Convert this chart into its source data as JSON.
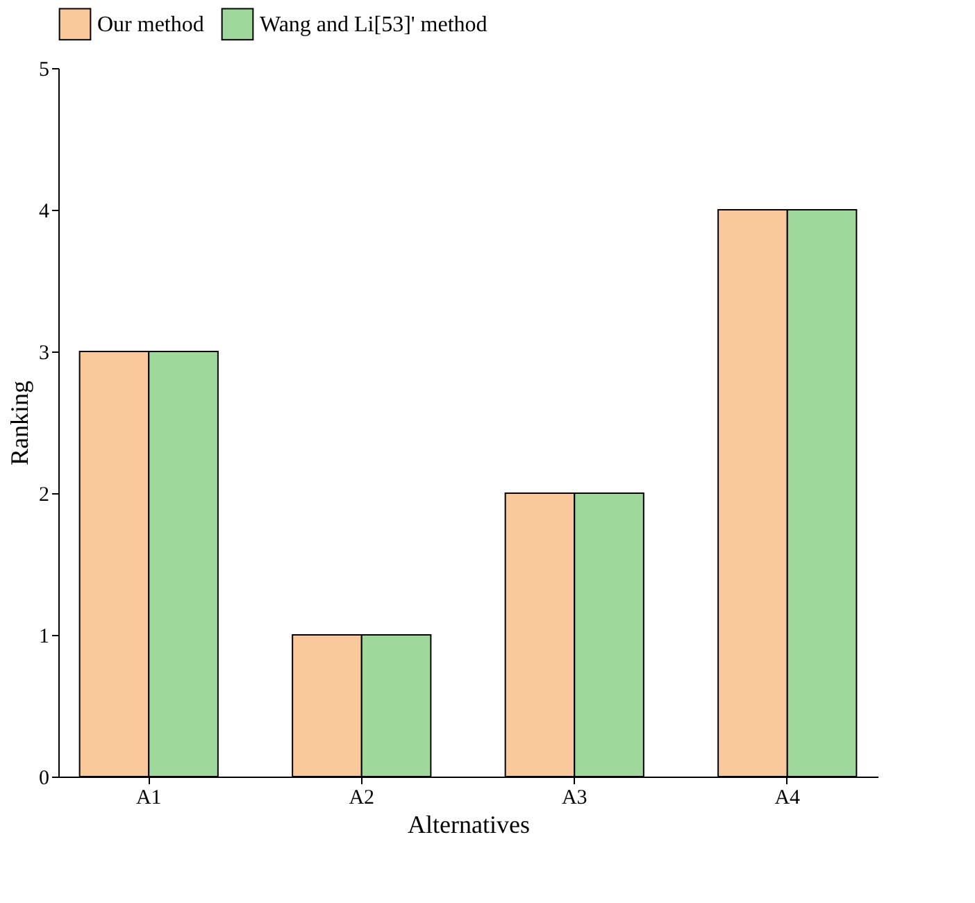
{
  "chart_data": {
    "type": "bar",
    "xlabel": "Alternatives",
    "ylabel": "Ranking",
    "categories": [
      "A1",
      "A2",
      "A3",
      "A4"
    ],
    "series": [
      {
        "name": "Our method",
        "color": "#f9c89b",
        "values": [
          3,
          1,
          2,
          4
        ]
      },
      {
        "name": "Wang and Li[53]' method",
        "color": "#9ed99b",
        "values": [
          3,
          1,
          2,
          4
        ]
      }
    ],
    "ylim": [
      0,
      5
    ],
    "yticks": [
      0,
      1,
      2,
      3,
      4,
      5
    ],
    "grid": false,
    "legend": "top"
  }
}
